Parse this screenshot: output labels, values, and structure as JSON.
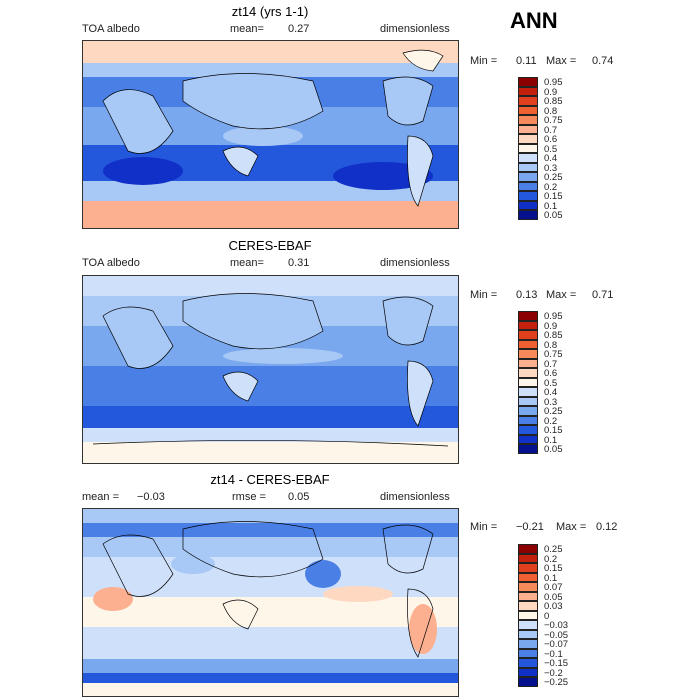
{
  "season": "ANN",
  "panels": [
    {
      "title": "zt14 (yrs 1-1)",
      "left_label": "TOA albedo",
      "mean_text": "mean=",
      "mean_value": "0.27",
      "right_label": "dimensionless",
      "min_label": "Min =",
      "min_value": "0.11",
      "max_label": "Max =",
      "max_value": "0.74",
      "levels": [
        "0.95",
        "0.9",
        "0.85",
        "0.8",
        "0.75",
        "0.7",
        "0.6",
        "0.5",
        "0.4",
        "0.3",
        "0.25",
        "0.2",
        "0.15",
        "0.1",
        "0.05"
      ],
      "colors": [
        "#8b0000",
        "#c4200e",
        "#e0401e",
        "#f06030",
        "#f78a5a",
        "#fcb090",
        "#fed8c0",
        "#fff6ea",
        "#cfe0fa",
        "#a8c8f5",
        "#7aa8ee",
        "#4a80e6",
        "#2458dc",
        "#1030c8",
        "#05108c"
      ]
    },
    {
      "title": "CERES-EBAF",
      "left_label": "TOA albedo",
      "mean_text": "mean=",
      "mean_value": "0.31",
      "right_label": "dimensionless",
      "min_label": "Min =",
      "min_value": "0.13",
      "max_label": "Max =",
      "max_value": "0.71",
      "levels": [
        "0.95",
        "0.9",
        "0.85",
        "0.8",
        "0.75",
        "0.7",
        "0.6",
        "0.5",
        "0.4",
        "0.3",
        "0.25",
        "0.2",
        "0.15",
        "0.1",
        "0.05"
      ],
      "colors": [
        "#8b0000",
        "#c4200e",
        "#e0401e",
        "#f06030",
        "#f78a5a",
        "#fcb090",
        "#fed8c0",
        "#fff6ea",
        "#cfe0fa",
        "#a8c8f5",
        "#7aa8ee",
        "#4a80e6",
        "#2458dc",
        "#1030c8",
        "#05108c"
      ]
    },
    {
      "title": "zt14 - CERES-EBAF",
      "left_label": "mean =",
      "left_value": "−0.03",
      "center_label": "rmse =",
      "center_value": "0.05",
      "right_label": "dimensionless",
      "min_label": "Min =",
      "min_value": "−0.21",
      "max_label": "Max =",
      "max_value": "0.12",
      "levels": [
        "0.25",
        "0.2",
        "0.15",
        "0.1",
        "0.07",
        "0.05",
        "0.03",
        "0",
        "−0.03",
        "−0.05",
        "−0.07",
        "−0.1",
        "−0.15",
        "−0.2",
        "−0.25"
      ],
      "colors": [
        "#8b0000",
        "#c4200e",
        "#e0401e",
        "#f06030",
        "#f78a5a",
        "#fcb090",
        "#fed8c0",
        "#fff6ea",
        "#cfe0fa",
        "#a8c8f5",
        "#7aa8ee",
        "#4a80e6",
        "#2458dc",
        "#1030c8",
        "#05108c"
      ]
    }
  ]
}
